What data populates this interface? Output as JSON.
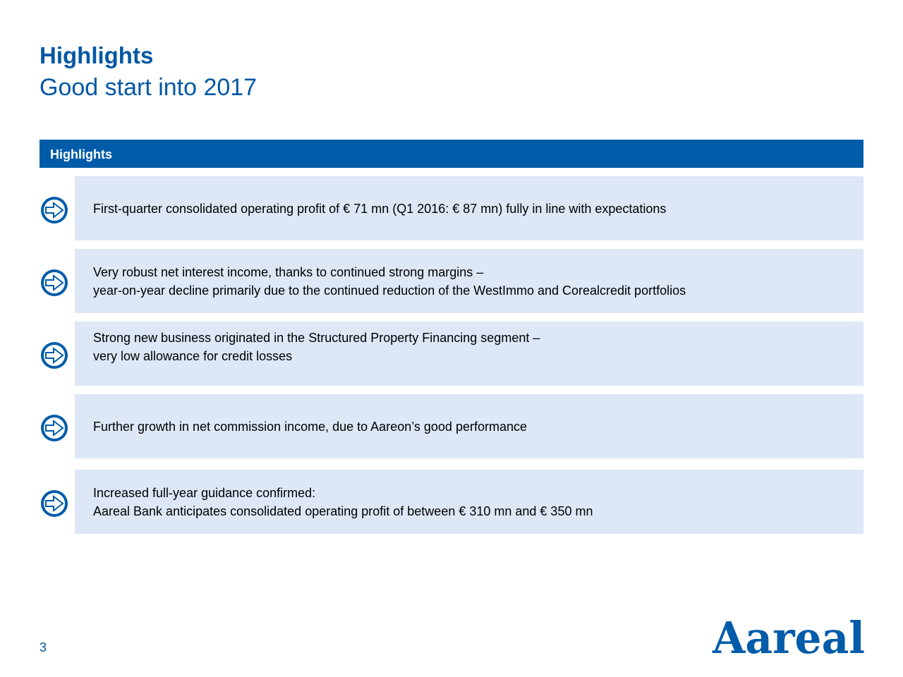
{
  "header": {
    "title": "Highlights",
    "subtitle": "Good start into 2017"
  },
  "section": {
    "label": "Highlights"
  },
  "highlights": [
    {
      "icon": "arrow-right-icon",
      "line1": "First-quarter consolidated operating profit of € 71 mn (Q1 2016: € 87 mn) fully in line with expectations",
      "line2": ""
    },
    {
      "icon": "arrow-right-icon",
      "line1": "Very robust net interest income, thanks to continued strong margins –",
      "line2": "year-on-year decline primarily due to the continued reduction of the WestImmo and Corealcredit portfolios"
    },
    {
      "icon": "arrow-right-icon",
      "line1": "Strong new business originated in the Structured Property Financing segment –",
      "line2": "very low allowance for credit losses"
    },
    {
      "icon": "arrow-right-icon",
      "line1": "Further growth in net commission income, due to Aareon’s good performance",
      "line2": ""
    },
    {
      "icon": "arrow-right-icon",
      "line1": "Increased full-year guidance confirmed:",
      "line2": "Aareal Bank anticipates consolidated operating profit of between € 310 mn and € 350 mn"
    }
  ],
  "footer": {
    "page_number": "3",
    "logo_text": "Aareal"
  },
  "colors": {
    "brand_blue": "#005ca9",
    "row_background": "#dde7f6",
    "text": "#000000"
  }
}
